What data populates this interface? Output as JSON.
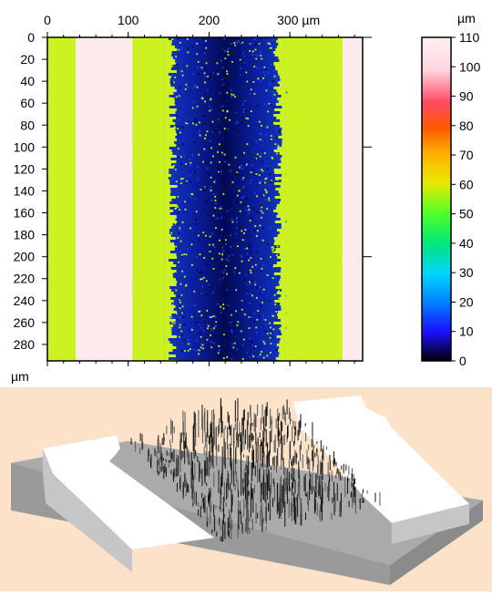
{
  "map": {
    "x_ticks": [
      {
        "value": 0,
        "label": "0"
      },
      {
        "value": 100,
        "label": "100"
      },
      {
        "value": 200,
        "label": "200"
      },
      {
        "value": 300,
        "label": "300 µm"
      }
    ],
    "y_ticks": [
      "0",
      "20",
      "40",
      "60",
      "80",
      "100",
      "120",
      "140",
      "160",
      "180",
      "200",
      "220",
      "240",
      "260",
      "280"
    ],
    "y_unit": "µm",
    "x_range_um": [
      0,
      390
    ],
    "y_range_um": [
      0,
      295
    ]
  },
  "colorbar": {
    "unit": "µm",
    "ticks": [
      "110",
      "100",
      "90",
      "80",
      "70",
      "60",
      "50",
      "40",
      "30",
      "20",
      "10",
      "0"
    ],
    "range": [
      0,
      110
    ]
  },
  "bands_um": [
    {
      "surface": "green",
      "from": 0,
      "to": 35
    },
    {
      "surface": "pink",
      "from": 35,
      "to": 105
    },
    {
      "surface": "green",
      "from": 105,
      "to": 145
    },
    {
      "surface": "trench",
      "from": 145,
      "to": 295
    },
    {
      "surface": "green",
      "from": 295,
      "to": 365
    },
    {
      "surface": "pink",
      "from": 365,
      "to": 390
    }
  ],
  "colors": {
    "pink": "#fdeaec",
    "green": "#cdf221",
    "trench_blue": "#0a1a9a",
    "trench_dark": "#000040",
    "block_top": "#ffffff",
    "block_side": "#bdbdbd",
    "base_top": "#a9a9a9",
    "base_side": "#8e8e8e",
    "background_bottom": "#fbe2c8"
  }
}
